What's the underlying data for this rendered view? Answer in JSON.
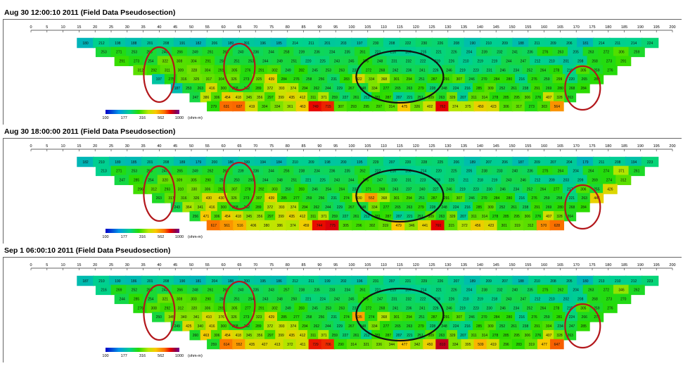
{
  "chart_data": [
    {
      "type": "heatmap",
      "title": "Aug 30 12:00:10 2011 (Field Data Pseudosection)",
      "x_ticks": [
        0,
        5,
        10,
        15,
        20,
        25,
        30,
        35,
        40,
        45,
        50,
        55,
        60,
        65,
        70,
        75,
        80,
        85,
        90,
        95,
        100,
        105,
        110,
        115,
        120,
        125,
        130,
        135,
        140,
        145,
        150,
        155,
        160,
        165,
        170,
        175,
        180,
        185,
        190,
        195,
        200
      ],
      "xlim": [
        0,
        200
      ],
      "colorbar": {
        "ticks": [
          "100",
          "177",
          "316",
          "562",
          "1000"
        ],
        "unit": "(ohm-m)"
      },
      "rows": [
        [
          180,
          212,
          198,
          188,
          201,
          208,
          191,
          182,
          206,
          189,
          201,
          196,
          185,
          214,
          211,
          201,
          203,
          197,
          230,
          208,
          222,
          230,
          226,
          208,
          190,
          210,
          209,
          188,
          211,
          209,
          206,
          181,
          214,
          211,
          214,
          224
        ],
        [
          253,
          271,
          253,
          256,
          240,
          266,
          249,
          261,
          263,
          240,
          236,
          244,
          258,
          239,
          236,
          234,
          235,
          261,
          221,
          216,
          207,
          215,
          221,
          226,
          204,
          239,
          232,
          241,
          236,
          276,
          263,
          205,
          263,
          272,
          306,
          259
        ],
        [
          291,
          273,
          254,
          322,
          308,
          304,
          291,
          250,
          251,
          253,
          244,
          249,
          251,
          220,
          225,
          243,
          245,
          276,
          248,
          231,
          232,
          222,
          219,
          226,
          210,
          219,
          219,
          244,
          247,
          212,
          210,
          201,
          208,
          268,
          273,
          291
        ],
        [
          312,
          292,
          311,
          309,
          328,
          304,
          291,
          305,
          276,
          291,
          302,
          249,
          282,
          245,
          253,
          263,
          232,
          272,
          268,
          242,
          236,
          241,
          226,
          246,
          219,
          223,
          231,
          246,
          234,
          252,
          264,
          278,
          216,
          305,
          259,
          276
        ],
        [
          197,
          275,
          316,
          325,
          317,
          304,
          326,
          273,
          325,
          439,
          284,
          276,
          258,
          256,
          231,
          283,
          422,
          334,
          368,
          301,
          294,
          251,
          287,
          291,
          307,
          246,
          270,
          284,
          280,
          216,
          276,
          259,
          299,
          220,
          265,
          280
        ],
        [
          187,
          253,
          263,
          416,
          300,
          268,
          262,
          289,
          372,
          393,
          374,
          294,
          262,
          244,
          229,
          267,
          248,
          334,
          277,
          265,
          263,
          279,
          228,
          248,
          224,
          216,
          285,
          309,
          252,
          261,
          238,
          291,
          269,
          280,
          268,
          284
        ],
        [
          247,
          386,
          306,
          454,
          418,
          345,
          356,
          297,
          399,
          435,
          412,
          311,
          371,
          259,
          227,
          261,
          212,
          281,
          287,
          207,
          221,
          251,
          309,
          263,
          329,
          207,
          311,
          314,
          278,
          285,
          295,
          306,
          276,
          407,
          328,
          263
        ],
        [
          279,
          631,
          637,
          419,
          304,
          334,
          361,
          463,
          749,
          715,
          307,
          293,
          295,
          297,
          314,
          475,
          326,
          402,
          762,
          374,
          375,
          450,
          423,
          306,
          317,
          273,
          303,
          564
        ]
      ]
    },
    {
      "type": "heatmap",
      "title": "Aug 30 18:00:00 2011 (Field Data Pseudosection)",
      "x_ticks": [
        0,
        5,
        10,
        15,
        20,
        25,
        30,
        35,
        40,
        45,
        50,
        55,
        60,
        65,
        70,
        75,
        80,
        85,
        90,
        95,
        100,
        105,
        110,
        115,
        120,
        125,
        130,
        135,
        140,
        145,
        150,
        155,
        160,
        165,
        170,
        175,
        180,
        185,
        190,
        195,
        200
      ],
      "xlim": [
        0,
        200
      ],
      "colorbar": {
        "ticks": [
          "100",
          "177",
          "316",
          "562",
          "1000"
        ],
        "unit": "(ohm-m)"
      },
      "rows": [
        [
          182,
          210,
          189,
          185,
          201,
          208,
          189,
          179,
          200,
          186,
          199,
          194,
          184,
          210,
          209,
          198,
          200,
          195,
          229,
          207,
          220,
          228,
          225,
          206,
          189,
          207,
          206,
          187,
          209,
          207,
          204,
          179,
          211,
          208,
          194,
          223
        ],
        [
          213,
          271,
          253,
          256,
          247,
          265,
          249,
          262,
          263,
          239,
          236,
          244,
          256,
          238,
          234,
          236,
          235,
          262,
          222,
          216,
          208,
          214,
          220,
          225,
          205,
          238,
          233,
          240,
          236,
          275,
          264,
          204,
          264,
          274,
          371,
          261
        ],
        [
          247,
          285,
          254,
          320,
          309,
          305,
          290,
          251,
          250,
          255,
          244,
          248,
          251,
          221,
          225,
          243,
          244,
          276,
          247,
          230,
          231,
          223,
          218,
          225,
          211,
          218,
          219,
          243,
          246,
          212,
          209,
          203,
          209,
          269,
          274,
          312
        ],
        [
          296,
          312,
          293,
          310,
          330,
          306,
          292,
          307,
          278,
          292,
          303,
          250,
          283,
          246,
          254,
          264,
          233,
          271,
          268,
          243,
          237,
          240,
          227,
          246,
          219,
          223,
          230,
          246,
          234,
          252,
          264,
          277,
          217,
          306,
          255,
          426
        ],
        [
          263,
          317,
          316,
          326,
          430,
          430,
          326,
          273,
          307,
          439,
          285,
          277,
          259,
          256,
          231,
          274,
          430,
          552,
          368,
          301,
          294,
          251,
          287,
          291,
          307,
          246,
          270,
          284,
          280,
          216,
          276,
          259,
          258,
          221,
          263,
          446
        ],
        [
          243,
          364,
          341,
          416,
          300,
          268,
          262,
          289,
          372,
          393,
          374,
          294,
          262,
          244,
          229,
          267,
          248,
          334,
          277,
          265,
          263,
          279,
          228,
          248,
          224,
          216,
          285,
          309,
          252,
          261,
          238,
          291,
          269,
          280,
          268,
          284
        ],
        [
          256,
          471,
          306,
          454,
          418,
          345,
          356,
          297,
          399,
          435,
          412,
          311,
          371,
          259,
          227,
          261,
          212,
          281,
          287,
          207,
          221,
          251,
          309,
          263,
          329,
          207,
          311,
          314,
          278,
          285,
          295,
          306,
          276,
          407,
          328,
          264
        ],
        [
          617,
          561,
          516,
          406,
          380,
          386,
          374,
          459,
          744,
          775,
          305,
          296,
          302,
          319,
          479,
          346,
          441,
          760,
          315,
          372,
          456,
          423,
          301,
          319,
          312,
          570,
          628
        ]
      ]
    },
    {
      "type": "heatmap",
      "title": "Sep  1 06:00:10 2011 (Field Data Pseudosection)",
      "x_ticks": [
        0,
        5,
        10,
        15,
        20,
        25,
        30,
        35,
        40,
        45,
        50,
        55,
        60,
        65,
        70,
        75,
        80,
        85,
        90,
        95,
        100,
        105,
        110,
        115,
        120,
        125,
        130,
        135,
        140,
        145,
        150,
        155,
        160,
        165,
        170,
        175,
        180,
        185,
        190,
        195,
        200
      ],
      "xlim": [
        0,
        200
      ],
      "colorbar": {
        "ticks": [
          "100",
          "177",
          "316",
          "562",
          "1000"
        ],
        "unit": "(ohm-m)"
      },
      "rows": [
        [
          187,
          210,
          190,
          186,
          201,
          208,
          190,
          181,
          204,
          188,
          200,
          195,
          186,
          212,
          211,
          199,
          202,
          196,
          231,
          207,
          221,
          229,
          226,
          207,
          189,
          209,
          207,
          188,
          210,
          208,
          205,
          180,
          213,
          210,
          212,
          223
        ],
        [
          216,
          269,
          252,
          255,
          243,
          266,
          248,
          261,
          262,
          240,
          235,
          243,
          257,
          238,
          235,
          233,
          234,
          261,
          221,
          215,
          207,
          214,
          221,
          226,
          204,
          238,
          232,
          240,
          235,
          275,
          262,
          204,
          263,
          272,
          346,
          262
        ],
        [
          244,
          285,
          254,
          321,
          308,
          303,
          290,
          250,
          251,
          254,
          243,
          248,
          250,
          221,
          224,
          242,
          245,
          275,
          247,
          231,
          232,
          222,
          218,
          226,
          210,
          219,
          218,
          243,
          247,
          212,
          210,
          202,
          208,
          268,
          273,
          270
        ],
        [
          276,
          308,
          292,
          312,
          320,
          306,
          291,
          305,
          277,
          291,
          302,
          249,
          283,
          245,
          253,
          263,
          232,
          272,
          268,
          241,
          236,
          241,
          226,
          246,
          219,
          223,
          230,
          246,
          234,
          252,
          264,
          278,
          215,
          305,
          259,
          276
        ],
        [
          250,
          345,
          340,
          341,
          410,
          376,
          326,
          273,
          323,
          429,
          285,
          277,
          258,
          256,
          231,
          274,
          535,
          274,
          368,
          301,
          294,
          251,
          287,
          291,
          307,
          246,
          270,
          284,
          280,
          216,
          276,
          259,
          281,
          224,
          266,
          273
        ],
        [
          249,
          425,
          340,
          416,
          300,
          268,
          262,
          289,
          372,
          393,
          374,
          294,
          262,
          244,
          229,
          267,
          248,
          334,
          277,
          265,
          263,
          279,
          228,
          248,
          224,
          216,
          285,
          309,
          252,
          261,
          238,
          291,
          304,
          234,
          247,
          285
        ],
        [
          260,
          463,
          306,
          454,
          418,
          345,
          356,
          297,
          399,
          435,
          412,
          311,
          371,
          259,
          227,
          261,
          212,
          281,
          287,
          207,
          221,
          251,
          309,
          263,
          329,
          207,
          311,
          314,
          278,
          285,
          295,
          306,
          276,
          407,
          328,
          263
        ],
        [
          259,
          614,
          552,
          435,
          427,
          413,
          372,
          411,
          729,
          706,
          290,
          314,
          321,
          336,
          344,
          477,
          342,
          450,
          810,
          334,
          395,
          509,
          419,
          296,
          283,
          319,
          477,
          647
        ]
      ]
    }
  ]
}
